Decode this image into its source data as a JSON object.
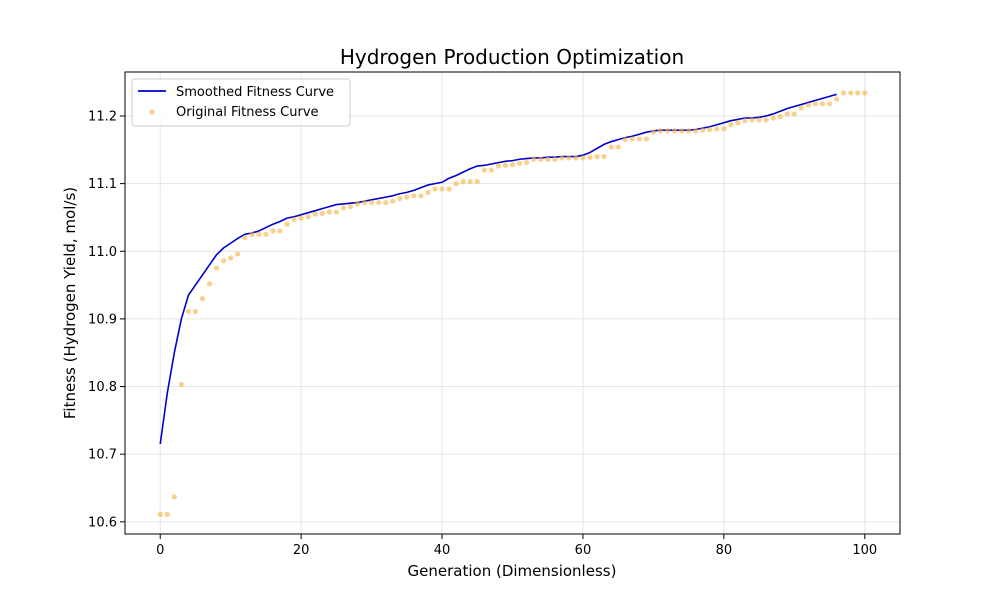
{
  "chart_data": {
    "type": "line",
    "title": "Hydrogen Production Optimization",
    "xlabel": "Generation (Dimensionless)",
    "ylabel": "Fitness (Hydrogen Yield, mol/s)",
    "xlim": [
      -5,
      105
    ],
    "ylim": [
      10.582,
      11.265
    ],
    "xticks": [
      0,
      20,
      40,
      60,
      80,
      100
    ],
    "yticks": [
      10.6,
      10.7,
      10.8,
      10.9,
      11.0,
      11.1,
      11.2
    ],
    "xtick_labels": [
      "0",
      "20",
      "40",
      "60",
      "80",
      "100"
    ],
    "ytick_labels": [
      "10.6",
      "10.7",
      "10.8",
      "10.9",
      "11.0",
      "11.1",
      "11.2"
    ],
    "grid": true,
    "legend_position": "upper-left",
    "series": [
      {
        "name": "Smoothed Fitness Curve",
        "kind": "line",
        "color": "#0000cc",
        "x": [
          0,
          1,
          2,
          3,
          4,
          5,
          6,
          7,
          8,
          9,
          10,
          11,
          12,
          13,
          14,
          15,
          16,
          17,
          18,
          19,
          20,
          21,
          22,
          23,
          24,
          25,
          26,
          27,
          28,
          29,
          30,
          31,
          32,
          33,
          34,
          35,
          36,
          37,
          38,
          39,
          40,
          41,
          42,
          43,
          44,
          45,
          46,
          47,
          48,
          49,
          50,
          51,
          52,
          53,
          54,
          55,
          56,
          57,
          58,
          59,
          60,
          61,
          62,
          63,
          64,
          65,
          66,
          67,
          68,
          69,
          70,
          71,
          72,
          73,
          74,
          75,
          76,
          77,
          78,
          79,
          80,
          81,
          82,
          83,
          84,
          85,
          86,
          87,
          88,
          89,
          90,
          91,
          92,
          93,
          94,
          95,
          96
        ],
        "values": [
          10.715,
          10.79,
          10.85,
          10.9,
          10.935,
          10.95,
          10.965,
          10.98,
          10.995,
          11.005,
          11.012,
          11.019,
          11.025,
          11.027,
          11.03,
          11.035,
          11.04,
          11.044,
          11.049,
          11.051,
          11.054,
          11.057,
          11.06,
          11.063,
          11.066,
          11.069,
          11.07,
          11.071,
          11.072,
          11.074,
          11.076,
          11.078,
          11.08,
          11.082,
          11.085,
          11.087,
          11.09,
          11.094,
          11.098,
          11.1,
          11.102,
          11.108,
          11.112,
          11.117,
          11.122,
          11.126,
          11.127,
          11.129,
          11.131,
          11.133,
          11.134,
          11.136,
          11.137,
          11.138,
          11.138,
          11.139,
          11.139,
          11.14,
          11.14,
          11.14,
          11.142,
          11.146,
          11.152,
          11.158,
          11.162,
          11.165,
          11.168,
          11.17,
          11.173,
          11.176,
          11.178,
          11.179,
          11.179,
          11.179,
          11.179,
          11.179,
          11.18,
          11.182,
          11.184,
          11.187,
          11.19,
          11.193,
          11.195,
          11.197,
          11.197,
          11.198,
          11.2,
          11.203,
          11.207,
          11.211,
          11.214,
          11.217,
          11.22,
          11.223,
          11.226,
          11.229,
          11.232
        ]
      },
      {
        "name": "Original Fitness Curve",
        "kind": "scatter",
        "color": "#f5b041",
        "x": [
          0,
          1,
          2,
          3,
          4,
          5,
          6,
          7,
          8,
          9,
          10,
          11,
          12,
          13,
          14,
          15,
          16,
          17,
          18,
          19,
          20,
          21,
          22,
          23,
          24,
          25,
          26,
          27,
          28,
          29,
          30,
          31,
          32,
          33,
          34,
          35,
          36,
          37,
          38,
          39,
          40,
          41,
          42,
          43,
          44,
          45,
          46,
          47,
          48,
          49,
          50,
          51,
          52,
          53,
          54,
          55,
          56,
          57,
          58,
          59,
          60,
          61,
          62,
          63,
          64,
          65,
          66,
          67,
          68,
          69,
          70,
          71,
          72,
          73,
          74,
          75,
          76,
          77,
          78,
          79,
          80,
          81,
          82,
          83,
          84,
          85,
          86,
          87,
          88,
          89,
          90,
          91,
          92,
          93,
          94,
          95,
          96,
          97,
          98,
          99,
          100
        ],
        "values": [
          10.611,
          10.611,
          10.637,
          10.803,
          10.911,
          10.911,
          10.93,
          10.952,
          10.975,
          10.986,
          10.99,
          10.996,
          11.02,
          11.025,
          11.025,
          11.025,
          11.03,
          11.03,
          11.04,
          11.047,
          11.049,
          11.051,
          11.055,
          11.056,
          11.058,
          11.058,
          11.064,
          11.066,
          11.07,
          11.072,
          11.072,
          11.072,
          11.072,
          11.074,
          11.078,
          11.08,
          11.082,
          11.082,
          11.087,
          11.092,
          11.092,
          11.092,
          11.1,
          11.103,
          11.103,
          11.103,
          11.12,
          11.12,
          11.126,
          11.127,
          11.128,
          11.13,
          11.131,
          11.136,
          11.136,
          11.136,
          11.136,
          11.138,
          11.138,
          11.138,
          11.138,
          11.139,
          11.14,
          11.14,
          11.154,
          11.154,
          11.165,
          11.166,
          11.166,
          11.166,
          11.176,
          11.178,
          11.178,
          11.178,
          11.178,
          11.178,
          11.178,
          11.179,
          11.18,
          11.181,
          11.181,
          11.187,
          11.19,
          11.193,
          11.194,
          11.194,
          11.194,
          11.197,
          11.199,
          11.203,
          11.203,
          11.212,
          11.216,
          11.218,
          11.218,
          11.218,
          11.225,
          11.234,
          11.234,
          11.234,
          11.234
        ]
      }
    ]
  }
}
